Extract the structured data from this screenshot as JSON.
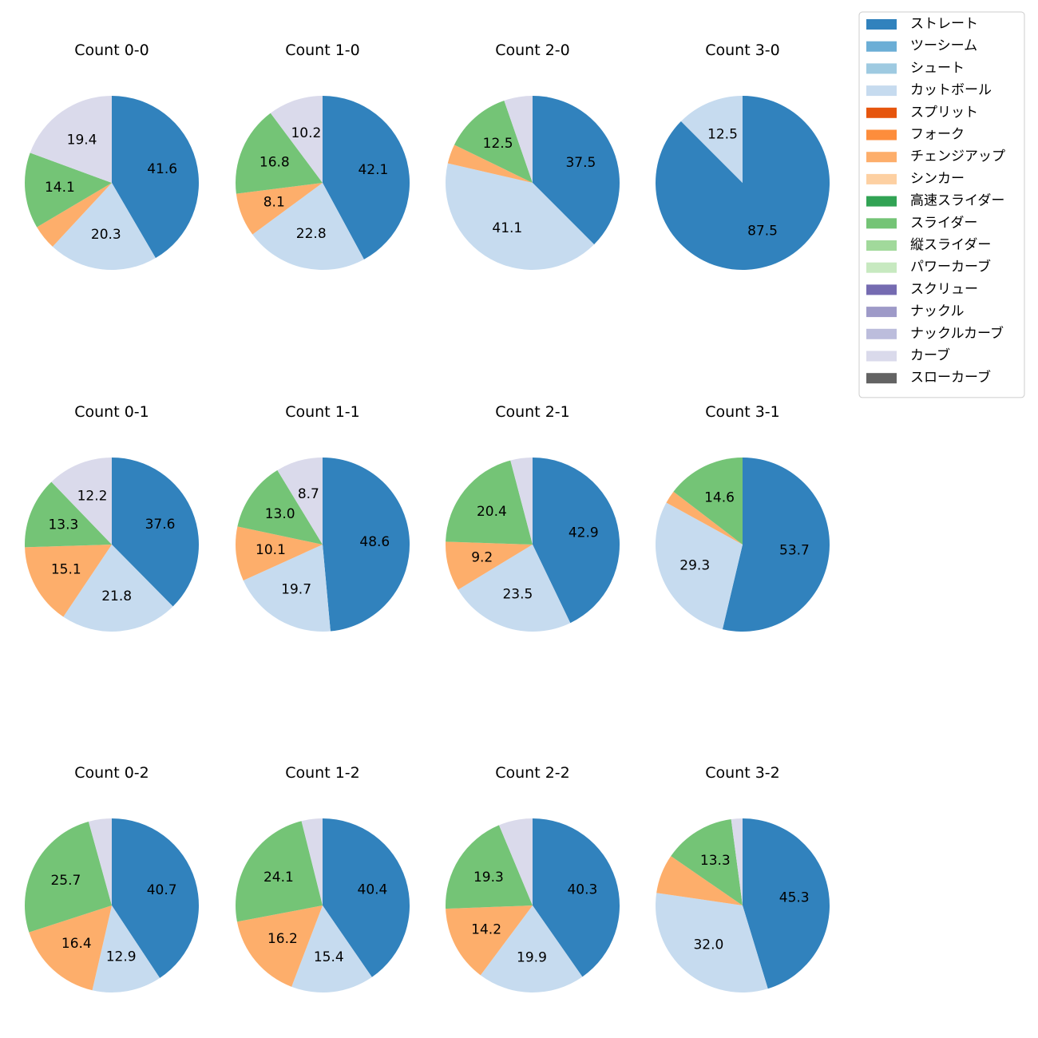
{
  "legend": {
    "entries": [
      {
        "label": "ストレート",
        "color": "#3182bd"
      },
      {
        "label": "ツーシーム",
        "color": "#6baed6"
      },
      {
        "label": "シュート",
        "color": "#9ecae1"
      },
      {
        "label": "カットボール",
        "color": "#c6dbef"
      },
      {
        "label": "スプリット",
        "color": "#e6550d"
      },
      {
        "label": "フォーク",
        "color": "#fd8d3c"
      },
      {
        "label": "チェンジアップ",
        "color": "#fdae6b"
      },
      {
        "label": "シンカー",
        "color": "#fdd0a2"
      },
      {
        "label": "高速スライダー",
        "color": "#31a354"
      },
      {
        "label": "スライダー",
        "color": "#74c476"
      },
      {
        "label": "縦スライダー",
        "color": "#a1d99b"
      },
      {
        "label": "パワーカーブ",
        "color": "#c7e9c0"
      },
      {
        "label": "スクリュー",
        "color": "#756bb1"
      },
      {
        "label": "ナックル",
        "color": "#9e9ac8"
      },
      {
        "label": "ナックルカーブ",
        "color": "#bcbddc"
      },
      {
        "label": "カーブ",
        "color": "#dadaeb"
      },
      {
        "label": "スローカーブ",
        "color": "#636363"
      }
    ],
    "placement": "top-right"
  },
  "chart_data": [
    {
      "type": "pie",
      "title": "Count 0-0",
      "slices": [
        {
          "category": "ストレート",
          "value": 41.6,
          "label": "41.6"
        },
        {
          "category": "カットボール",
          "value": 20.3,
          "label": "20.3"
        },
        {
          "category": "チェンジアップ",
          "value": 4.6,
          "label": ""
        },
        {
          "category": "スライダー",
          "value": 14.1,
          "label": "14.1"
        },
        {
          "category": "カーブ",
          "value": 19.4,
          "label": "19.4"
        }
      ]
    },
    {
      "type": "pie",
      "title": "Count 1-0",
      "slices": [
        {
          "category": "ストレート",
          "value": 42.1,
          "label": "42.1"
        },
        {
          "category": "カットボール",
          "value": 22.8,
          "label": "22.8"
        },
        {
          "category": "チェンジアップ",
          "value": 8.1,
          "label": "8.1"
        },
        {
          "category": "スライダー",
          "value": 16.8,
          "label": "16.8"
        },
        {
          "category": "カーブ",
          "value": 10.2,
          "label": "10.2"
        }
      ]
    },
    {
      "type": "pie",
      "title": "Count 2-0",
      "slices": [
        {
          "category": "ストレート",
          "value": 37.5,
          "label": "37.5"
        },
        {
          "category": "カットボール",
          "value": 41.1,
          "label": "41.1"
        },
        {
          "category": "チェンジアップ",
          "value": 3.6,
          "label": ""
        },
        {
          "category": "スライダー",
          "value": 12.5,
          "label": "12.5"
        },
        {
          "category": "カーブ",
          "value": 5.3,
          "label": ""
        }
      ]
    },
    {
      "type": "pie",
      "title": "Count 3-0",
      "slices": [
        {
          "category": "ストレート",
          "value": 87.5,
          "label": "87.5"
        },
        {
          "category": "カットボール",
          "value": 12.5,
          "label": "12.5"
        }
      ]
    },
    {
      "type": "pie",
      "title": "Count 0-1",
      "slices": [
        {
          "category": "ストレート",
          "value": 37.6,
          "label": "37.6"
        },
        {
          "category": "カットボール",
          "value": 21.8,
          "label": "21.8"
        },
        {
          "category": "チェンジアップ",
          "value": 15.1,
          "label": "15.1"
        },
        {
          "category": "スライダー",
          "value": 13.3,
          "label": "13.3"
        },
        {
          "category": "カーブ",
          "value": 12.2,
          "label": "12.2"
        }
      ]
    },
    {
      "type": "pie",
      "title": "Count 1-1",
      "slices": [
        {
          "category": "ストレート",
          "value": 48.6,
          "label": "48.6"
        },
        {
          "category": "カットボール",
          "value": 19.7,
          "label": "19.7"
        },
        {
          "category": "チェンジアップ",
          "value": 10.1,
          "label": "10.1"
        },
        {
          "category": "スライダー",
          "value": 13.0,
          "label": "13.0"
        },
        {
          "category": "カーブ",
          "value": 8.7,
          "label": "8.7"
        }
      ]
    },
    {
      "type": "pie",
      "title": "Count 2-1",
      "slices": [
        {
          "category": "ストレート",
          "value": 42.9,
          "label": "42.9"
        },
        {
          "category": "カットボール",
          "value": 23.5,
          "label": "23.5"
        },
        {
          "category": "チェンジアップ",
          "value": 9.2,
          "label": "9.2"
        },
        {
          "category": "スライダー",
          "value": 20.4,
          "label": "20.4"
        },
        {
          "category": "カーブ",
          "value": 4.1,
          "label": ""
        }
      ]
    },
    {
      "type": "pie",
      "title": "Count 3-1",
      "slices": [
        {
          "category": "ストレート",
          "value": 53.7,
          "label": "53.7"
        },
        {
          "category": "カットボール",
          "value": 29.3,
          "label": "29.3"
        },
        {
          "category": "チェンジアップ",
          "value": 2.4,
          "label": ""
        },
        {
          "category": "スライダー",
          "value": 14.6,
          "label": "14.6"
        }
      ]
    },
    {
      "type": "pie",
      "title": "Count 0-2",
      "slices": [
        {
          "category": "ストレート",
          "value": 40.7,
          "label": "40.7"
        },
        {
          "category": "カットボール",
          "value": 12.9,
          "label": "12.9"
        },
        {
          "category": "チェンジアップ",
          "value": 16.4,
          "label": "16.4"
        },
        {
          "category": "スライダー",
          "value": 25.7,
          "label": "25.7"
        },
        {
          "category": "カーブ",
          "value": 4.3,
          "label": ""
        }
      ]
    },
    {
      "type": "pie",
      "title": "Count 1-2",
      "slices": [
        {
          "category": "ストレート",
          "value": 40.4,
          "label": "40.4"
        },
        {
          "category": "カットボール",
          "value": 15.4,
          "label": "15.4"
        },
        {
          "category": "チェンジアップ",
          "value": 16.2,
          "label": "16.2"
        },
        {
          "category": "スライダー",
          "value": 24.1,
          "label": "24.1"
        },
        {
          "category": "カーブ",
          "value": 3.9,
          "label": ""
        }
      ]
    },
    {
      "type": "pie",
      "title": "Count 2-2",
      "slices": [
        {
          "category": "ストレート",
          "value": 40.3,
          "label": "40.3"
        },
        {
          "category": "カットボール",
          "value": 19.9,
          "label": "19.9"
        },
        {
          "category": "チェンジアップ",
          "value": 14.2,
          "label": "14.2"
        },
        {
          "category": "スライダー",
          "value": 19.3,
          "label": "19.3"
        },
        {
          "category": "カーブ",
          "value": 6.3,
          "label": ""
        }
      ]
    },
    {
      "type": "pie",
      "title": "Count 3-2",
      "slices": [
        {
          "category": "ストレート",
          "value": 45.3,
          "label": "45.3"
        },
        {
          "category": "カットボール",
          "value": 32.0,
          "label": "32.0"
        },
        {
          "category": "チェンジアップ",
          "value": 7.3,
          "label": ""
        },
        {
          "category": "スライダー",
          "value": 13.3,
          "label": "13.3"
        },
        {
          "category": "カーブ",
          "value": 2.1,
          "label": ""
        }
      ]
    }
  ]
}
